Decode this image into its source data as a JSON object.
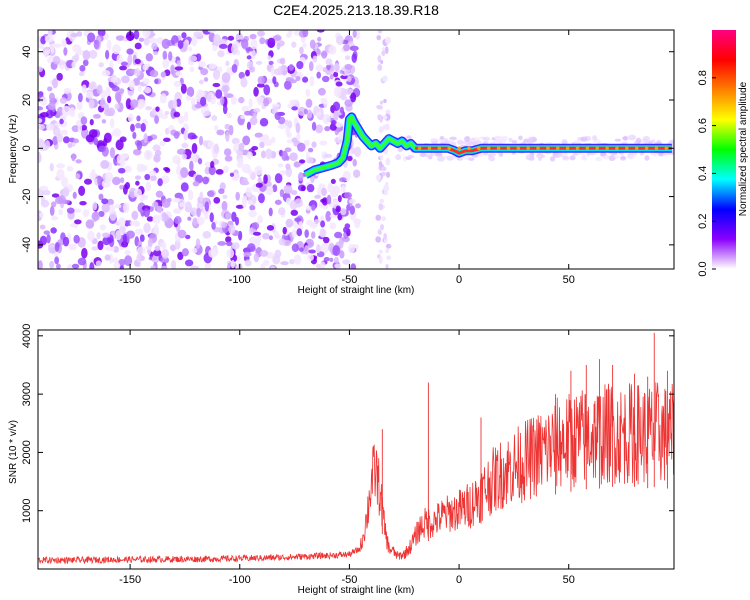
{
  "title": "C2E4.2025.213.18.39.R18",
  "chart_data": [
    {
      "type": "heatmap",
      "xlabel": "Height of straight line (km)",
      "ylabel": "Frequency (Hz)",
      "xlim": [
        -192,
        98
      ],
      "ylim": [
        -50,
        49
      ],
      "x_ticks": [
        "-150",
        "-100",
        "-50",
        "0",
        "50"
      ],
      "x_tick_values": [
        -150,
        -100,
        -50,
        0,
        50
      ],
      "y_ticks": [
        "40",
        "20",
        "0",
        "-20",
        "-40"
      ],
      "y_tick_values": [
        40,
        20,
        0,
        -20,
        -40
      ],
      "noise_region_km": [
        -192,
        -50
      ],
      "sparse_column_km": [
        -37,
        -32
      ],
      "signal_track": {
        "x": [
          -70,
          -66,
          -62,
          -58,
          -55,
          -53,
          -51,
          -50,
          -49,
          -48,
          -46,
          -44,
          -42,
          -40,
          -38,
          -36,
          -34,
          -32,
          -30,
          -28,
          -26,
          -24,
          -22,
          -20,
          -18,
          -15,
          -10,
          -5,
          -2,
          0,
          3,
          6,
          10,
          20,
          30,
          40,
          50,
          60,
          70,
          80,
          90,
          97
        ],
        "y": [
          -11,
          -9,
          -8,
          -7,
          -6,
          -4,
          3,
          12,
          13,
          11,
          8,
          5,
          3,
          1,
          2,
          0,
          2,
          4,
          3,
          2,
          3,
          1,
          2,
          0,
          0,
          0,
          0,
          0,
          -1,
          -2,
          -1,
          -1,
          0,
          0,
          0,
          0,
          0,
          0,
          0,
          0,
          0,
          0
        ]
      },
      "colorbar": {
        "label": "Normalized spectral amplitude",
        "range": [
          0.0,
          1.0
        ],
        "ticks": [
          "0.0",
          "0.2",
          "0.4",
          "0.6",
          "0.8"
        ],
        "tick_values": [
          0.0,
          0.2,
          0.4,
          0.6,
          0.8
        ],
        "colors": [
          "#ffffff",
          "#8a00ff",
          "#0000ff",
          "#00ffff",
          "#00ff00",
          "#ffff00",
          "#ff8000",
          "#ff0000",
          "#ff0080"
        ]
      }
    },
    {
      "type": "line",
      "xlabel": "Height of straight line (km)",
      "ylabel": "SNR (10 * v/v)",
      "xlim": [
        -192,
        98
      ],
      "ylim": [
        0,
        4100
      ],
      "x_ticks": [
        "-150",
        "-100",
        "-50",
        "0",
        "50"
      ],
      "x_tick_values": [
        -150,
        -100,
        -50,
        0,
        50
      ],
      "y_ticks": [
        "4000",
        "3000",
        "2000",
        "1000"
      ],
      "y_tick_values": [
        4000,
        3000,
        2000,
        1000
      ],
      "color": "#ee3333",
      "series": {
        "x": [
          -192,
          -180,
          -160,
          -140,
          -120,
          -100,
          -80,
          -60,
          -50,
          -45,
          -42,
          -40,
          -38,
          -36,
          -34,
          -32,
          -30,
          -28,
          -25,
          -22,
          -20,
          -18,
          -15,
          -12,
          -10,
          -8,
          -5,
          0,
          5,
          10,
          15,
          20,
          25,
          30,
          35,
          40,
          45,
          50,
          55,
          60,
          65,
          70,
          75,
          80,
          85,
          90,
          95,
          98
        ],
        "y": [
          150,
          150,
          160,
          165,
          170,
          180,
          200,
          230,
          250,
          350,
          900,
          1500,
          1700,
          1300,
          700,
          350,
          300,
          220,
          250,
          400,
          550,
          700,
          800,
          800,
          850,
          900,
          950,
          1000,
          1100,
          1300,
          1500,
          1650,
          1750,
          1850,
          1950,
          2050,
          2150,
          2200,
          2250,
          2300,
          2300,
          2350,
          2300,
          2350,
          2300,
          2350,
          2300,
          2300
        ]
      },
      "peaks": {
        "x": [
          -35,
          -14,
          10,
          44,
          51,
          58,
          64,
          70,
          80,
          86,
          89,
          95
        ],
        "y": [
          2400,
          3200,
          2600,
          3000,
          3400,
          3500,
          3600,
          3500,
          3350,
          3300,
          4050,
          3400
        ]
      }
    }
  ]
}
